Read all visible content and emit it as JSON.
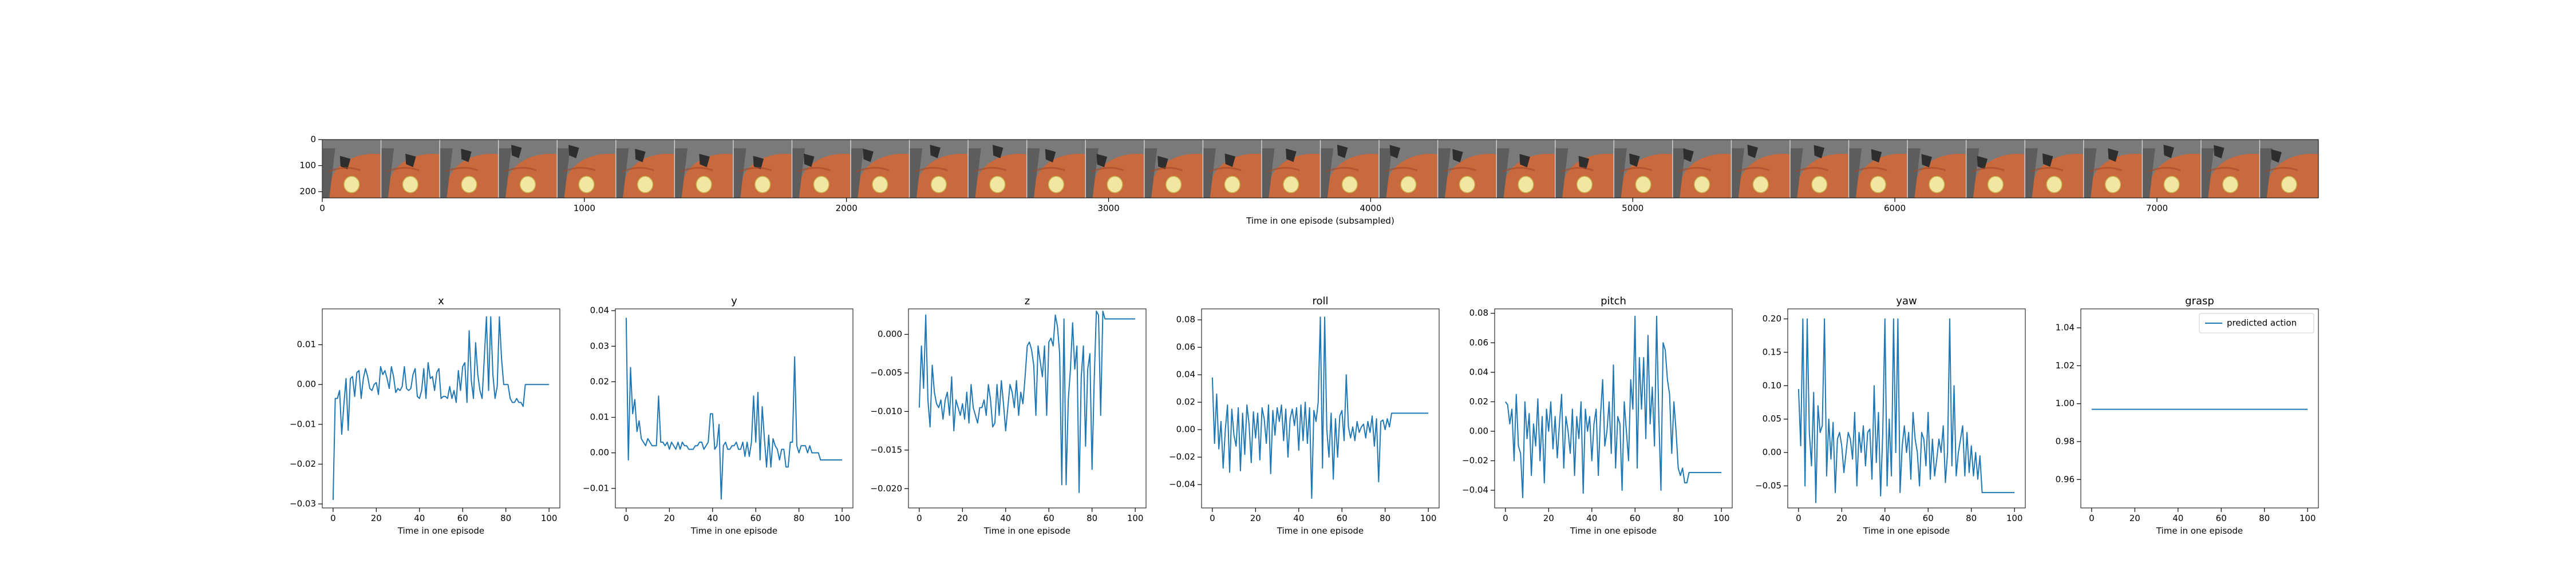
{
  "colors": {
    "line": "#1f77b4",
    "frame_bg": "#7a7a7a",
    "table": "#c96a3e",
    "table_dark": "#a14a28",
    "plate": "#f1e6a2",
    "plate_edge": "#c9b24c"
  },
  "filmstrip": {
    "xlabel": "Time in one episode (subsampled)",
    "x_ticks": [
      "0",
      "1000",
      "2000",
      "3000",
      "4000",
      "5000",
      "6000",
      "7000"
    ],
    "x_tick_values": [
      0,
      1000,
      2000,
      3000,
      4000,
      5000,
      6000,
      7000
    ],
    "y_ticks": [
      "0",
      "100",
      "200"
    ],
    "y_tick_values": [
      0,
      100,
      200
    ],
    "xlim": [
      0,
      7616
    ],
    "ylim": [
      224,
      0
    ],
    "num_frames": 34
  },
  "chart_data": [
    {
      "type": "line",
      "title": "x",
      "xlabel": "Time in one episode",
      "ylabel": "",
      "xlim": [
        -5,
        105
      ],
      "ylim": [
        -0.031,
        0.019
      ],
      "x_ticks": [
        0,
        20,
        40,
        60,
        80,
        100
      ],
      "y_ticks": [
        -0.03,
        -0.02,
        -0.01,
        0.0,
        0.01
      ],
      "y_tick_labels": [
        "−0.03",
        "−0.02",
        "−0.01",
        "0.00",
        "0.01"
      ],
      "series": [
        {
          "values": [
            -0.029,
            -0.0035,
            -0.0035,
            -0.0015,
            -0.0125,
            -0.005,
            0.0015,
            -0.0115,
            0.0015,
            0.002,
            -0.003,
            0.003,
            0.0035,
            -0.0035,
            0.0015,
            0.004,
            0.002,
            -0.001,
            -0.0015,
            0.0,
            0.0005,
            -0.0025,
            0.0045,
            0.0025,
            0.0035,
            0.0015,
            -0.001,
            0.0045,
            0.002,
            -0.002,
            -0.001,
            -0.0015,
            -0.0005,
            0.0045,
            -0.001,
            -0.0015,
            -0.001,
            0.0025,
            0.004,
            -0.003,
            -0.0035,
            -0.0015,
            0.004,
            -0.0035,
            0.0055,
            0.0015,
            0.002,
            -0.0015,
            0.003,
            0.004,
            -0.0035,
            -0.003,
            -0.003,
            -0.0035,
            -0.0005,
            -0.0035,
            -0.0015,
            -0.0045,
            0.0035,
            -0.0015,
            0.0045,
            0.0055,
            -0.0045,
            0.0135,
            0.001,
            -0.0035,
            0.0105,
            0.0025,
            -0.0015,
            -0.0035,
            0.0065,
            0.017,
            -0.0015,
            0.017,
            0.0025,
            -0.0035,
            -0.0005,
            0.017,
            0.0065,
            0.0,
            0.0,
            0.0,
            -0.0035,
            -0.0045,
            -0.0045,
            -0.0035,
            -0.0045,
            -0.0045,
            -0.0055,
            0.0,
            0.0,
            0.0,
            0.0,
            0.0,
            0.0,
            0.0,
            0.0,
            0.0,
            0.0,
            0.0,
            0.0
          ]
        }
      ]
    },
    {
      "type": "line",
      "title": "y",
      "xlabel": "Time in one episode",
      "ylabel": "",
      "xlim": [
        -5,
        105
      ],
      "ylim": [
        -0.0155,
        0.0405
      ],
      "x_ticks": [
        0,
        20,
        40,
        60,
        80,
        100
      ],
      "y_ticks": [
        -0.01,
        0.0,
        0.01,
        0.02,
        0.03,
        0.04
      ],
      "y_tick_labels": [
        "−0.01",
        "0.00",
        "0.01",
        "0.02",
        "0.03",
        "0.04"
      ],
      "series": [
        {
          "values": [
            0.038,
            -0.002,
            0.024,
            0.011,
            0.015,
            0.006,
            0.009,
            0.004,
            0.003,
            0.002,
            0.004,
            0.003,
            0.002,
            0.002,
            0.002,
            0.016,
            0.003,
            0.003,
            0.002,
            0.003,
            0.001,
            0.003,
            0.002,
            0.001,
            0.003,
            0.001,
            0.003,
            0.002,
            0.002,
            0.001,
            0.001,
            0.001,
            0.002,
            0.002,
            0.003,
            0.003,
            0.001,
            0.002,
            0.003,
            0.011,
            0.011,
            0.001,
            0.002,
            0.008,
            -0.013,
            0.002,
            0.003,
            0.001,
            0.001,
            0.002,
            0.002,
            0.003,
            0.001,
            0.001,
            0.003,
            -0.001,
            0.003,
            -0.001,
            0.003,
            0.016,
            0.003,
            0.017,
            -0.002,
            0.013,
            0.004,
            -0.004,
            0.005,
            -0.004,
            0.004,
            0.002,
            0.001,
            -0.002,
            0.001,
            0.001,
            -0.004,
            -0.004,
            0.003,
            0.003,
            0.027,
            0.002,
            0.0,
            0.002,
            0.002,
            0.002,
            0.0,
            0.002,
            0.0,
            0.0,
            0.0,
            0.0,
            -0.002,
            -0.002,
            -0.002,
            -0.002,
            -0.002,
            -0.002,
            -0.002,
            -0.002,
            -0.002,
            -0.002,
            -0.002
          ]
        }
      ]
    },
    {
      "type": "line",
      "title": "z",
      "xlabel": "Time in one episode",
      "ylabel": "",
      "xlim": [
        -5,
        105
      ],
      "ylim": [
        -0.0225,
        0.0033
      ],
      "x_ticks": [
        0,
        20,
        40,
        60,
        80,
        100
      ],
      "y_ticks": [
        -0.02,
        -0.015,
        -0.01,
        -0.005,
        0.0
      ],
      "y_tick_labels": [
        "−0.020",
        "−0.015",
        "−0.010",
        "−0.005",
        "0.000"
      ],
      "series": [
        {
          "values": [
            -0.0095,
            -0.0015,
            -0.007,
            0.0025,
            -0.0085,
            -0.012,
            -0.004,
            -0.0075,
            -0.009,
            -0.0095,
            -0.0085,
            -0.011,
            -0.0085,
            -0.0075,
            -0.0105,
            -0.0055,
            -0.0125,
            -0.0085,
            -0.0095,
            -0.0105,
            -0.009,
            -0.011,
            -0.0075,
            -0.0115,
            -0.0065,
            -0.0095,
            -0.0105,
            -0.0115,
            -0.0095,
            -0.0095,
            -0.0085,
            -0.0105,
            -0.0065,
            -0.0085,
            -0.012,
            -0.0115,
            -0.0065,
            -0.0105,
            -0.006,
            -0.009,
            -0.0125,
            -0.0095,
            -0.0065,
            -0.0075,
            -0.0095,
            -0.006,
            -0.0105,
            -0.0075,
            -0.009,
            -0.0055,
            -0.0015,
            -0.001,
            -0.002,
            -0.004,
            -0.0105,
            -0.0015,
            -0.0035,
            -0.0055,
            -0.0015,
            -0.0105,
            -0.001,
            -0.0005,
            -0.0015,
            0.0025,
            0.001,
            -0.0025,
            -0.0195,
            0.002,
            -0.0195,
            -0.0085,
            -0.0045,
            0.0015,
            -0.0045,
            -0.0015,
            -0.0205,
            -0.0055,
            -0.0015,
            -0.0145,
            -0.0045,
            -0.0025,
            -0.0175,
            -0.006,
            0.003,
            0.0025,
            -0.0105,
            0.003,
            0.002,
            0.002,
            0.002,
            0.002,
            0.002,
            0.002,
            0.002,
            0.002,
            0.002,
            0.002,
            0.002,
            0.002,
            0.002,
            0.002,
            0.002
          ]
        }
      ]
    },
    {
      "type": "line",
      "title": "roll",
      "xlabel": "Time in one episode",
      "ylabel": "",
      "xlim": [
        -5,
        105
      ],
      "ylim": [
        -0.057,
        0.088
      ],
      "x_ticks": [
        0,
        20,
        40,
        60,
        80,
        100
      ],
      "y_ticks": [
        -0.04,
        -0.02,
        0.0,
        0.02,
        0.04,
        0.06,
        0.08
      ],
      "y_tick_labels": [
        "−0.04",
        "−0.02",
        "0.00",
        "0.02",
        "0.04",
        "0.06",
        "0.08"
      ],
      "series": [
        {
          "values": [
            0.038,
            -0.01,
            0.026,
            -0.014,
            0.006,
            -0.028,
            0.0,
            0.018,
            -0.031,
            0.015,
            -0.004,
            -0.012,
            0.016,
            -0.03,
            0.012,
            -0.018,
            0.018,
            0.004,
            -0.024,
            0.013,
            -0.006,
            0.012,
            -0.022,
            0.016,
            0.008,
            -0.01,
            0.018,
            -0.032,
            0.014,
            -0.004,
            0.016,
            0.006,
            0.018,
            -0.008,
            0.015,
            -0.02,
            0.008,
            0.015,
            0.003,
            0.016,
            -0.015,
            0.018,
            -0.008,
            0.02,
            -0.01,
            0.016,
            -0.05,
            0.014,
            0.006,
            0.02,
            0.082,
            -0.028,
            0.082,
            0.0,
            -0.02,
            0.012,
            -0.036,
            0.008,
            -0.02,
            0.01,
            0.014,
            -0.008,
            0.04,
            0.002,
            -0.006,
            0.002,
            -0.008,
            0.006,
            -0.002,
            0.002,
            0.004,
            -0.006,
            0.006,
            -0.002,
            0.01,
            -0.012,
            0.008,
            -0.038,
            0.006,
            0.007,
            0.0,
            0.008,
            0.002,
            0.012,
            0.012,
            0.012,
            0.012,
            0.012,
            0.012,
            0.012,
            0.012,
            0.012,
            0.012,
            0.012,
            0.012,
            0.012,
            0.012,
            0.012,
            0.012,
            0.012,
            0.012
          ]
        }
      ]
    },
    {
      "type": "line",
      "title": "pitch",
      "xlabel": "Time in one episode",
      "ylabel": "",
      "xlim": [
        -5,
        105
      ],
      "ylim": [
        -0.052,
        0.083
      ],
      "x_ticks": [
        0,
        20,
        40,
        60,
        80,
        100
      ],
      "y_ticks": [
        -0.04,
        -0.02,
        0.0,
        0.02,
        0.04,
        0.06,
        0.08
      ],
      "y_tick_labels": [
        "−0.04",
        "−0.02",
        "0.00",
        "0.02",
        "0.04",
        "0.06",
        "0.08"
      ],
      "series": [
        {
          "values": [
            0.02,
            0.018,
            0.005,
            0.015,
            -0.02,
            0.025,
            -0.01,
            -0.015,
            -0.045,
            0.02,
            -0.005,
            0.012,
            -0.03,
            0.005,
            -0.01,
            0.022,
            -0.02,
            0.01,
            -0.035,
            0.015,
            0.0,
            0.02,
            -0.012,
            0.01,
            -0.018,
            0.005,
            0.025,
            -0.025,
            0.01,
            0.0,
            -0.015,
            0.015,
            -0.03,
            0.01,
            -0.005,
            0.02,
            -0.042,
            0.015,
            0.0,
            0.01,
            -0.02,
            0.005,
            0.015,
            -0.03,
            0.01,
            0.035,
            -0.01,
            0.0,
            0.02,
            -0.015,
            0.045,
            -0.025,
            0.01,
            0.005,
            -0.04,
            0.02,
            0.0,
            -0.02,
            0.035,
            0.015,
            0.078,
            -0.025,
            0.05,
            0.015,
            0.05,
            -0.005,
            0.065,
            0.005,
            0.03,
            -0.01,
            0.078,
            0.01,
            -0.04,
            0.06,
            0.055,
            0.035,
            0.025,
            -0.015,
            0.02,
            0.0,
            -0.025,
            -0.03,
            -0.025,
            -0.035,
            -0.035,
            -0.028,
            -0.028,
            -0.028,
            -0.028,
            -0.028,
            -0.028,
            -0.028,
            -0.028,
            -0.028,
            -0.028,
            -0.028,
            -0.028,
            -0.028,
            -0.028,
            -0.028,
            -0.028
          ]
        }
      ]
    },
    {
      "type": "line",
      "title": "yaw",
      "xlabel": "Time in one episode",
      "ylabel": "",
      "xlim": [
        -5,
        105
      ],
      "ylim": [
        -0.083,
        0.215
      ],
      "x_ticks": [
        0,
        20,
        40,
        60,
        80,
        100
      ],
      "y_ticks": [
        -0.05,
        0.0,
        0.05,
        0.1,
        0.15,
        0.2
      ],
      "y_tick_labels": [
        "−0.05",
        "0.00",
        "0.05",
        "0.10",
        "0.15",
        "0.20"
      ],
      "series": [
        {
          "values": [
            0.095,
            0.01,
            0.2,
            -0.05,
            0.2,
            0.03,
            -0.02,
            0.09,
            -0.075,
            0.07,
            0.03,
            0.04,
            0.2,
            -0.035,
            0.05,
            -0.01,
            0.045,
            -0.06,
            0.02,
            0.03,
            0.01,
            -0.03,
            0.0,
            0.03,
            0.02,
            -0.01,
            0.06,
            -0.05,
            0.03,
            0.0,
            0.04,
            -0.02,
            0.03,
            0.035,
            -0.04,
            0.1,
            -0.015,
            0.06,
            -0.065,
            0.03,
            0.2,
            -0.05,
            0.05,
            -0.035,
            0.2,
            0.0,
            0.2,
            -0.06,
            0.01,
            0.04,
            0.0,
            0.03,
            -0.04,
            0.06,
            0.02,
            0.0,
            -0.05,
            0.03,
            0.02,
            -0.02,
            0.06,
            -0.04,
            0.02,
            -0.035,
            -0.01,
            0.02,
            0.0,
            0.04,
            -0.045,
            0.0,
            0.2,
            -0.02,
            0.1,
            -0.035,
            0.0,
            0.02,
            0.04,
            -0.035,
            0.03,
            -0.03,
            0.01,
            -0.035,
            0.0,
            -0.04,
            -0.005,
            -0.06,
            -0.06,
            -0.06,
            -0.06,
            -0.06,
            -0.06,
            -0.06,
            -0.06,
            -0.06,
            -0.06,
            -0.06,
            -0.06,
            -0.06,
            -0.06,
            -0.06,
            -0.06
          ]
        }
      ]
    },
    {
      "type": "line",
      "title": "grasp",
      "xlabel": "Time in one episode",
      "ylabel": "",
      "xlim": [
        -5,
        105
      ],
      "ylim": [
        0.945,
        1.05
      ],
      "x_ticks": [
        0,
        20,
        40,
        60,
        80,
        100
      ],
      "y_ticks": [
        0.96,
        0.98,
        1.0,
        1.02,
        1.04
      ],
      "y_tick_labels": [
        "0.96",
        "0.98",
        "1.00",
        "1.02",
        "1.04"
      ],
      "legend": {
        "entries": [
          "predicted action"
        ],
        "placement": "upper right"
      },
      "series": [
        {
          "name": "predicted action",
          "values": [
            0.997,
            0.997,
            0.997,
            0.997,
            0.997,
            0.997,
            0.997,
            0.997,
            0.997,
            0.997,
            0.997,
            0.997,
            0.997,
            0.997,
            0.997,
            0.997,
            0.997,
            0.997,
            0.997,
            0.997,
            0.997,
            0.997,
            0.997,
            0.997,
            0.997,
            0.997,
            0.997,
            0.997,
            0.997,
            0.997,
            0.997,
            0.997,
            0.997,
            0.997,
            0.997,
            0.997,
            0.997,
            0.997,
            0.997,
            0.997,
            0.997,
            0.997,
            0.997,
            0.997,
            0.997,
            0.997,
            0.997,
            0.997,
            0.997,
            0.997,
            0.997,
            0.997,
            0.997,
            0.997,
            0.997,
            0.997,
            0.997,
            0.997,
            0.997,
            0.997,
            0.997,
            0.997,
            0.997,
            0.997,
            0.997,
            0.997,
            0.997,
            0.997,
            0.997,
            0.997,
            0.997,
            0.997,
            0.997,
            0.997,
            0.997,
            0.997,
            0.997,
            0.997,
            0.997,
            0.997,
            0.997,
            0.997,
            0.997,
            0.997,
            0.997,
            0.997,
            0.997,
            0.997,
            0.997,
            0.997,
            0.997,
            0.997,
            0.997,
            0.997,
            0.997,
            0.997,
            0.997,
            0.997,
            0.997,
            0.997,
            0.997
          ]
        }
      ]
    }
  ]
}
